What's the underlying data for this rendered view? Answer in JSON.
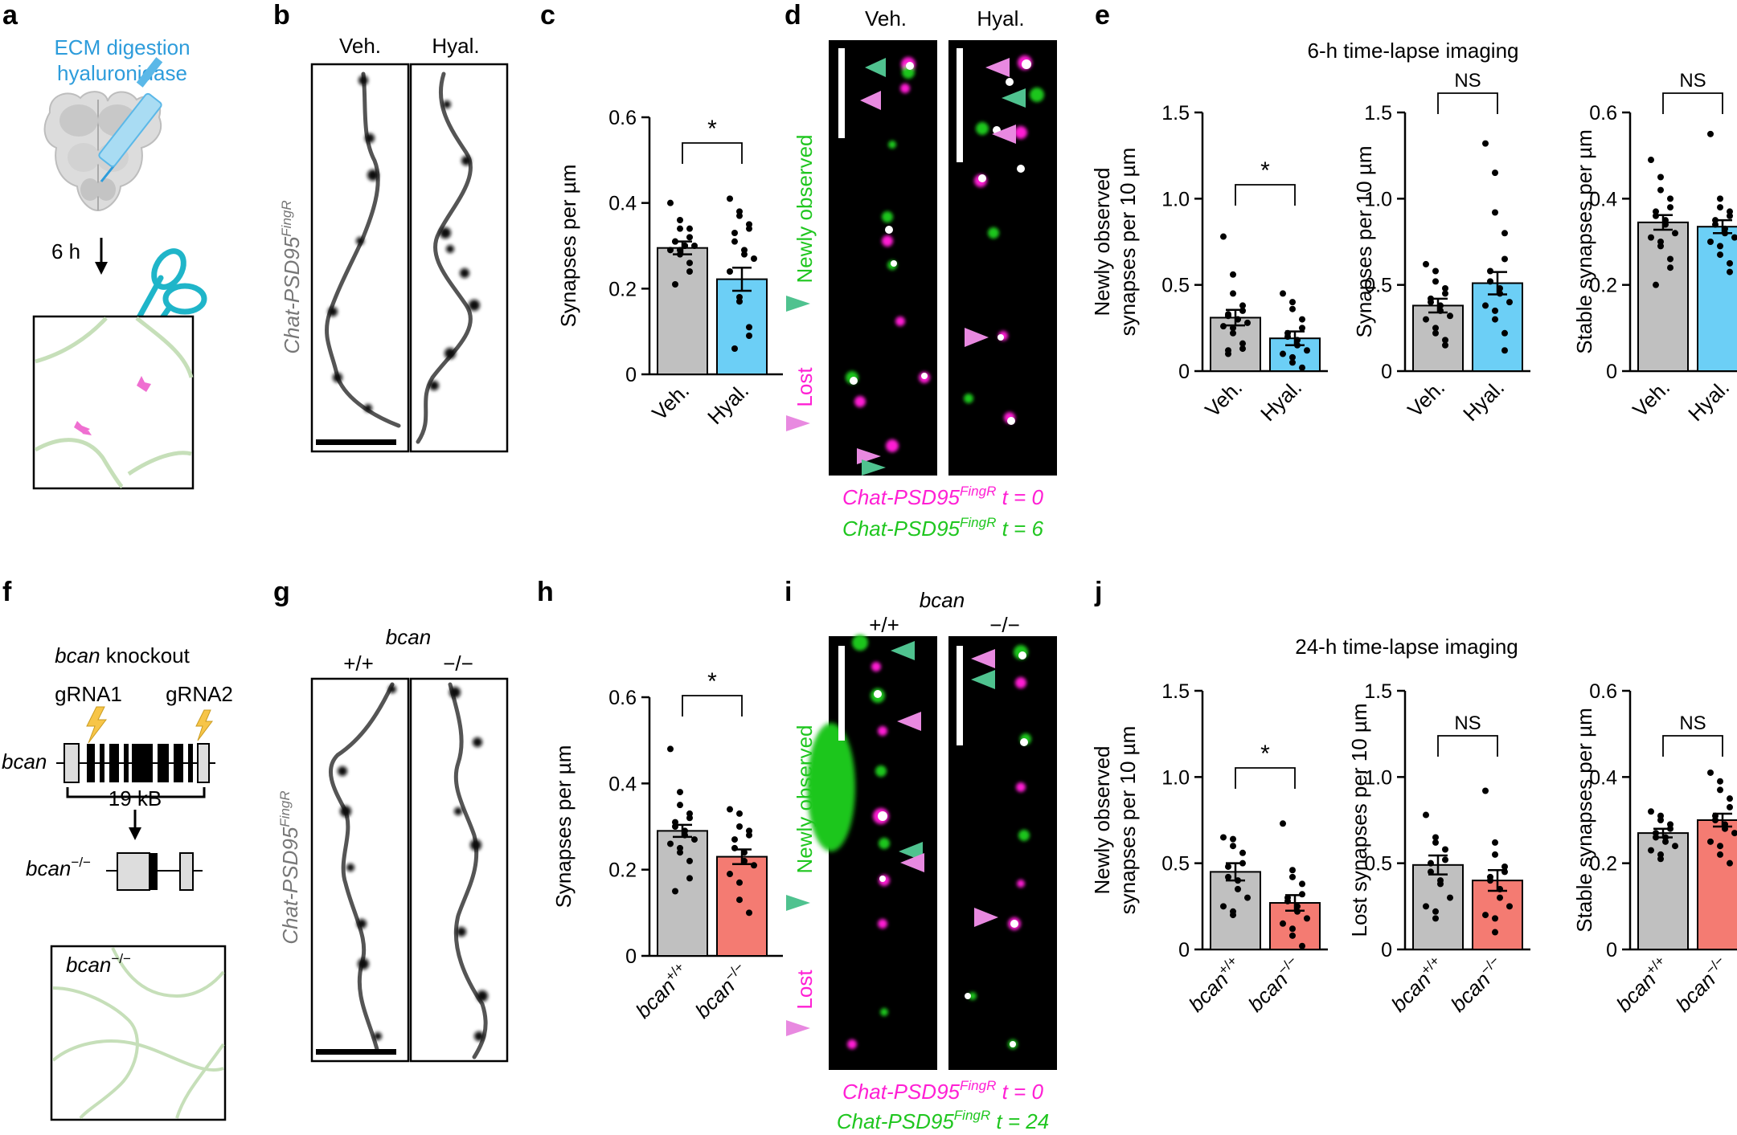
{
  "panel_letters": [
    "a",
    "b",
    "c",
    "d",
    "e",
    "f",
    "g",
    "h",
    "i",
    "j"
  ],
  "colors": {
    "veh_bar": "#c0c0c0",
    "hyal_bar": "#6ccff6",
    "bcan_ko_bar": "#f47b72",
    "magenta": "#ff1fd4",
    "green": "#1fc61f",
    "ecm_blue": "#2d9cdb",
    "teal_scissors": "#1fb5c9",
    "ecm_strands": "#c6dfb9",
    "bolt": "#f7c548",
    "arrow_green": "#4fc28f",
    "arrow_pink": "#e889e0"
  },
  "panel_a": {
    "title_line1": "ECM digestion",
    "title_line2": "hyaluronidase",
    "time": "6 h"
  },
  "panel_b": {
    "ylabel_main": "Chat-PSD95",
    "ylabel_sup": "FingR",
    "col1": "Veh.",
    "col2": "Hyal."
  },
  "panel_d": {
    "col1": "Veh.",
    "col2": "Hyal.",
    "label_new": "Newly observed",
    "label_lost": "Lost",
    "legend1_main": "Chat-PSD95",
    "legend1_sup": "FingR",
    "legend1_t": "t = 0",
    "legend2_main": "Chat-PSD95",
    "legend2_sup": "FingR",
    "legend2_t": "t = 6"
  },
  "panel_e": {
    "title": "6-h time-lapse imaging"
  },
  "panel_f": {
    "title_gene": "bcan",
    "title_rest": " knockout",
    "grna1": "gRNA1",
    "grna2": "gRNA2",
    "gene_label": "bcan",
    "size": "19 kB",
    "ko_main": "bcan",
    "ko_sup": "−/−",
    "box_main": "bcan",
    "box_sup": "−/−"
  },
  "panel_g": {
    "ylabel_main": "Chat-PSD95",
    "ylabel_sup": "FingR",
    "gene": "bcan",
    "col1": "+/+",
    "col2": "−/−"
  },
  "panel_i": {
    "gene": "bcan",
    "col1": "+/+",
    "col2": "−/−",
    "label_new": "Newly observed",
    "label_lost": "Lost",
    "legend1_main": "Chat-PSD95",
    "legend1_sup": "FingR",
    "legend1_t": "t = 0",
    "legend2_main": "Chat-PSD95",
    "legend2_sup": "FingR",
    "legend2_t": "t = 24"
  },
  "panel_j": {
    "title": "24-h time-lapse imaging"
  },
  "chart_data": [
    {
      "id": "c",
      "type": "bar",
      "ylabel": "Synapses per µm",
      "categories": [
        "Veh.",
        "Hyal."
      ],
      "ylim": [
        0,
        0.6
      ],
      "yticks": [
        "0",
        "0.2",
        "0.4",
        "0.6"
      ],
      "values": [
        0.295,
        0.222
      ],
      "sem": [
        0.015,
        0.027
      ],
      "sig": "*",
      "points": [
        [
          0.4,
          0.36,
          0.34,
          0.34,
          0.32,
          0.31,
          0.31,
          0.3,
          0.3,
          0.3,
          0.29,
          0.29,
          0.28,
          0.26,
          0.24,
          0.21
        ],
        [
          0.41,
          0.38,
          0.37,
          0.35,
          0.34,
          0.33,
          0.31,
          0.29,
          0.28,
          0.27,
          0.24,
          0.18,
          0.17,
          0.11,
          0.09,
          0.06
        ]
      ]
    },
    {
      "id": "e1",
      "type": "bar",
      "ylabel_lines": [
        "Newly observed",
        "synapses per 10 µm"
      ],
      "categories": [
        "Veh.",
        "Hyal."
      ],
      "ylim": [
        0,
        1.5
      ],
      "yticks": [
        "0",
        "0.5",
        "1.0",
        "1.5"
      ],
      "values": [
        0.31,
        0.19
      ],
      "sem": [
        0.045,
        0.04
      ],
      "sig": "*",
      "points": [
        [
          0.78,
          0.56,
          0.45,
          0.38,
          0.35,
          0.33,
          0.32,
          0.3,
          0.3,
          0.28,
          0.26,
          0.25,
          0.22,
          0.16,
          0.13,
          0.12,
          0.1
        ],
        [
          0.45,
          0.4,
          0.36,
          0.3,
          0.25,
          0.22,
          0.2,
          0.18,
          0.15,
          0.12,
          0.1,
          0.08,
          0.05,
          0.02
        ]
      ]
    },
    {
      "id": "e2",
      "type": "bar",
      "ylabel": "Synapses per 10 µm",
      "categories": [
        "Veh.",
        "Hyal."
      ],
      "ylim": [
        0,
        1.5
      ],
      "yticks": [
        "0",
        "0.5",
        "1.0",
        "1.5"
      ],
      "values": [
        0.38,
        0.51
      ],
      "sem": [
        0.04,
        0.065
      ],
      "sig": "NS",
      "points": [
        [
          0.62,
          0.58,
          0.52,
          0.48,
          0.45,
          0.42,
          0.4,
          0.38,
          0.35,
          0.32,
          0.3,
          0.25,
          0.22,
          0.18,
          0.15
        ],
        [
          1.32,
          1.15,
          0.92,
          0.8,
          0.65,
          0.58,
          0.52,
          0.48,
          0.45,
          0.4,
          0.38,
          0.35,
          0.3,
          0.22,
          0.12
        ]
      ]
    },
    {
      "id": "e3",
      "type": "bar",
      "ylabel": "Stable synapses per µm",
      "categories": [
        "Veh.",
        "Hyal."
      ],
      "ylim": [
        0,
        0.6
      ],
      "yticks": [
        "0",
        "0.2",
        "0.4",
        "0.6"
      ],
      "values": [
        0.345,
        0.335
      ],
      "sem": [
        0.017,
        0.015
      ],
      "sig": "NS",
      "points": [
        [
          0.49,
          0.45,
          0.42,
          0.4,
          0.38,
          0.37,
          0.36,
          0.35,
          0.34,
          0.32,
          0.31,
          0.3,
          0.29,
          0.26,
          0.24,
          0.2
        ],
        [
          0.55,
          0.4,
          0.38,
          0.37,
          0.36,
          0.35,
          0.34,
          0.33,
          0.32,
          0.31,
          0.3,
          0.29,
          0.27,
          0.25,
          0.23
        ]
      ]
    },
    {
      "id": "h",
      "type": "bar",
      "ylabel": "Synapses per µm",
      "categories": [
        "bcan+/+",
        "bcan−/−"
      ],
      "cat_main": [
        "bcan",
        "bcan"
      ],
      "cat_sup": [
        "+/+",
        "−/−"
      ],
      "ylim": [
        0,
        0.6
      ],
      "yticks": [
        "0",
        "0.2",
        "0.4",
        "0.6"
      ],
      "values": [
        0.29,
        0.23
      ],
      "sem": [
        0.014,
        0.017
      ],
      "sig": "*",
      "points": [
        [
          0.48,
          0.38,
          0.35,
          0.33,
          0.32,
          0.31,
          0.3,
          0.29,
          0.28,
          0.27,
          0.26,
          0.25,
          0.24,
          0.22,
          0.18,
          0.15
        ],
        [
          0.34,
          0.33,
          0.3,
          0.29,
          0.28,
          0.27,
          0.25,
          0.24,
          0.22,
          0.21,
          0.19,
          0.17,
          0.13,
          0.1
        ]
      ]
    },
    {
      "id": "j1",
      "type": "bar",
      "ylabel_lines": [
        "Newly observed",
        "synapses per 10 µm"
      ],
      "categories": [
        "bcan+/+",
        "bcan−/−"
      ],
      "cat_main": [
        "bcan",
        "bcan"
      ],
      "cat_sup": [
        "+/+",
        "−/−"
      ],
      "ylim": [
        0,
        1.5
      ],
      "yticks": [
        "0",
        "0.5",
        "1.0",
        "1.5"
      ],
      "values": [
        0.45,
        0.27
      ],
      "sem": [
        0.05,
        0.045
      ],
      "sig": "*",
      "points": [
        [
          0.65,
          0.64,
          0.6,
          0.56,
          0.5,
          0.48,
          0.42,
          0.4,
          0.35,
          0.3,
          0.25,
          0.22,
          0.2
        ],
        [
          0.73,
          0.46,
          0.42,
          0.38,
          0.32,
          0.3,
          0.28,
          0.25,
          0.22,
          0.18,
          0.15,
          0.12,
          0.08,
          0.02
        ]
      ]
    },
    {
      "id": "j2",
      "type": "bar",
      "ylabel": "Lost synapses per 10 µm",
      "categories": [
        "bcan+/+",
        "bcan−/−"
      ],
      "cat_main": [
        "bcan",
        "bcan"
      ],
      "cat_sup": [
        "+/+",
        "−/−"
      ],
      "ylim": [
        0,
        1.5
      ],
      "yticks": [
        "0",
        "0.5",
        "1.0",
        "1.5"
      ],
      "values": [
        0.49,
        0.4
      ],
      "sem": [
        0.055,
        0.06
      ],
      "sig": "NS",
      "points": [
        [
          0.78,
          0.65,
          0.62,
          0.58,
          0.52,
          0.5,
          0.45,
          0.4,
          0.38,
          0.3,
          0.25,
          0.22,
          0.18
        ],
        [
          0.92,
          0.62,
          0.55,
          0.48,
          0.45,
          0.42,
          0.4,
          0.35,
          0.3,
          0.25,
          0.2,
          0.18,
          0.1
        ]
      ]
    },
    {
      "id": "j3",
      "type": "bar",
      "ylabel": "Stable synapses per µm",
      "categories": [
        "bcan+/+",
        "bcan−/−"
      ],
      "cat_main": [
        "bcan",
        "bcan"
      ],
      "cat_sup": [
        "+/+",
        "−/−"
      ],
      "ylim": [
        0,
        0.6
      ],
      "yticks": [
        "0",
        "0.2",
        "0.4",
        "0.6"
      ],
      "values": [
        0.27,
        0.3
      ],
      "sem": [
        0.01,
        0.015
      ],
      "sig": "NS",
      "points": [
        [
          0.32,
          0.31,
          0.3,
          0.29,
          0.28,
          0.27,
          0.26,
          0.26,
          0.25,
          0.24,
          0.23,
          0.22,
          0.21
        ],
        [
          0.41,
          0.39,
          0.37,
          0.35,
          0.33,
          0.31,
          0.3,
          0.29,
          0.28,
          0.27,
          0.25,
          0.24,
          0.22,
          0.2
        ]
      ]
    }
  ]
}
